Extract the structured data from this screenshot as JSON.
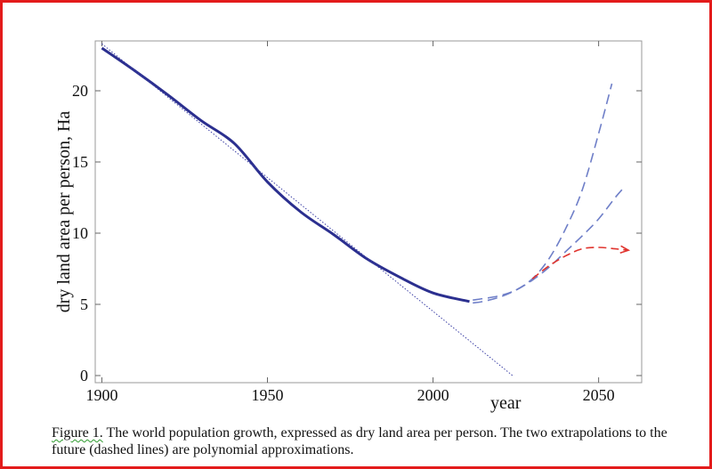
{
  "chart_data": {
    "type": "line",
    "title": "",
    "xlabel": "year",
    "ylabel": "dry land area per person, Ha",
    "xlim": [
      1898,
      2063
    ],
    "ylim": [
      -0.5,
      23.5
    ],
    "x_ticks": [
      1900,
      1950,
      2000,
      2050
    ],
    "y_ticks": [
      0,
      5,
      10,
      15,
      20
    ],
    "grid": false,
    "legend": "none",
    "series": [
      {
        "style": "solid",
        "color": "#2b2f8f",
        "x": [
          1900,
          1910,
          1920,
          1930,
          1940,
          1950,
          1960,
          1970,
          1980,
          1990,
          2000,
          2011
        ],
        "y": [
          23.0,
          21.4,
          19.7,
          17.9,
          16.3,
          13.6,
          11.5,
          9.9,
          8.2,
          6.9,
          5.8,
          5.2
        ]
      },
      {
        "style": "dotted-linear-trend",
        "color": "#3b3fa5",
        "x": [
          1900,
          2024
        ],
        "y": [
          23.3,
          0.0
        ]
      },
      {
        "style": "dashed-extrapolation",
        "color": "#6f7fc8",
        "x": [
          2012,
          2015,
          2020,
          2025,
          2030,
          2035,
          2040,
          2045,
          2050,
          2054
        ],
        "y": [
          5.1,
          5.2,
          5.5,
          6.0,
          6.8,
          8.2,
          10.3,
          13.0,
          17.0,
          20.5
        ]
      },
      {
        "style": "dashed-extrapolation",
        "color": "#6f7fc8",
        "x": [
          2012,
          2015,
          2020,
          2025,
          2030,
          2035,
          2040,
          2045,
          2050,
          2055,
          2058
        ],
        "y": [
          5.3,
          5.4,
          5.6,
          6.0,
          6.7,
          7.6,
          8.7,
          9.8,
          11.0,
          12.5,
          13.3
        ]
      },
      {
        "style": "dashed-arrow",
        "color": "#e0342e",
        "x": [
          2030,
          2035,
          2040,
          2045,
          2050,
          2055,
          2059
        ],
        "y": [
          6.8,
          7.7,
          8.4,
          8.9,
          9.0,
          8.9,
          8.8
        ]
      }
    ]
  },
  "caption": {
    "label": "Figure 1.",
    "text": " The world population growth, expressed as dry land area per person. The two extrapolations to the future (dashed lines) are polynomial approximations."
  }
}
